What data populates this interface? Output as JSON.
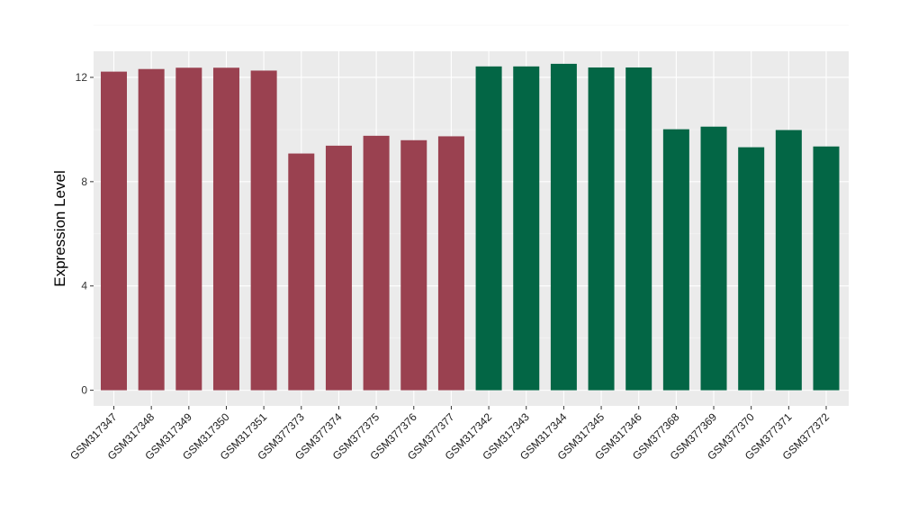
{
  "chart_data": {
    "type": "bar",
    "title": "",
    "xlabel": "",
    "ylabel": "Expression Level",
    "ylim": [
      -0.6,
      13.0
    ],
    "yticks": [
      0,
      4,
      8,
      12
    ],
    "grid": true,
    "categories": [
      "GSM317347",
      "GSM317348",
      "GSM317349",
      "GSM317350",
      "GSM317351",
      "GSM377373",
      "GSM377374",
      "GSM377375",
      "GSM377376",
      "GSM377377",
      "GSM317342",
      "GSM317343",
      "GSM317344",
      "GSM317345",
      "GSM317346",
      "GSM377368",
      "GSM377369",
      "GSM377370",
      "GSM377371",
      "GSM377372"
    ],
    "values": [
      12.22,
      12.32,
      12.37,
      12.37,
      12.26,
      9.08,
      9.38,
      9.76,
      9.59,
      9.74,
      12.42,
      12.42,
      12.52,
      12.38,
      12.38,
      10.01,
      10.11,
      9.32,
      9.98,
      9.35
    ],
    "bar_groups": [
      0,
      0,
      0,
      0,
      0,
      0,
      0,
      0,
      0,
      0,
      1,
      1,
      1,
      1,
      1,
      1,
      1,
      1,
      1,
      1
    ],
    "colors": {
      "group_colors": [
        "#9a4150",
        "#036645"
      ],
      "panel_background": "#ebebeb",
      "grid_major": "#ffffff",
      "grid_minor": "#f5f5f5"
    }
  }
}
